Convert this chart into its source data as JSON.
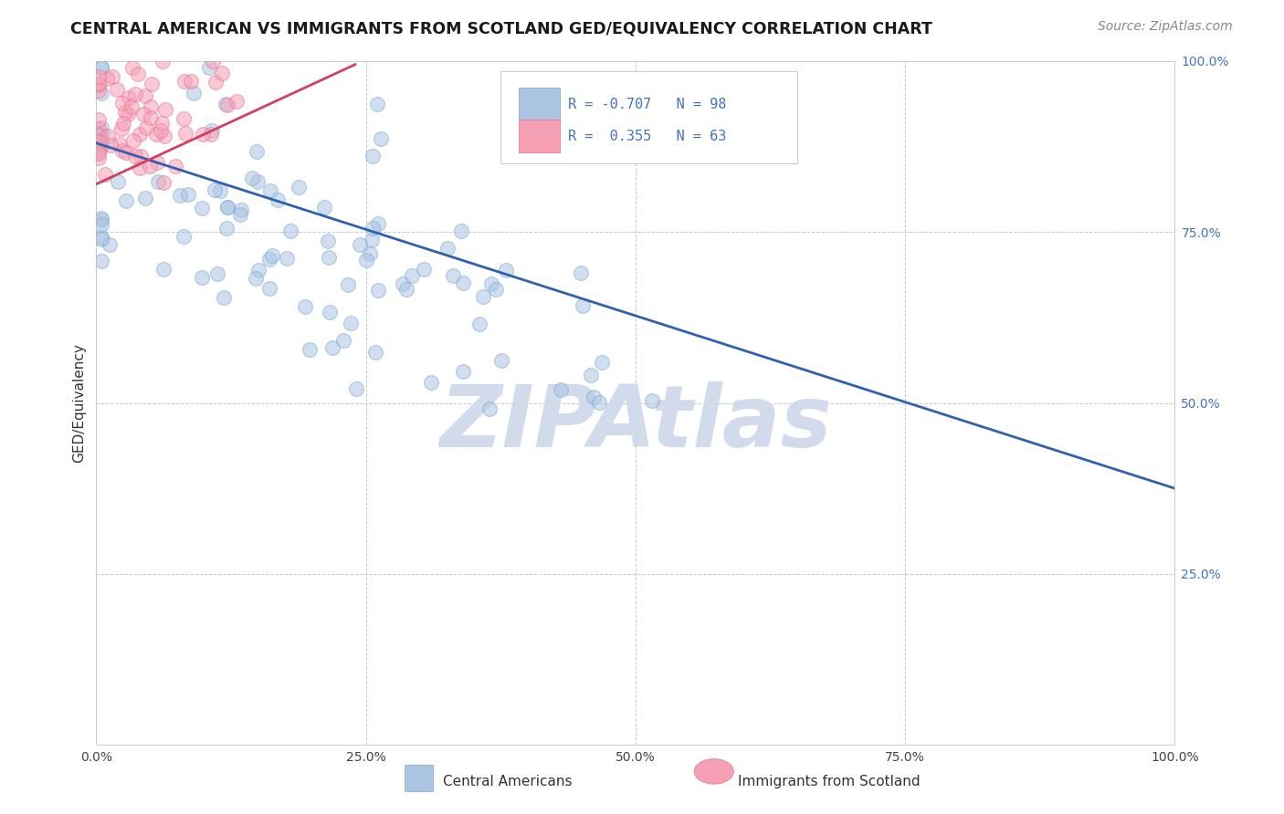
{
  "title": "CENTRAL AMERICAN VS IMMIGRANTS FROM SCOTLAND GED/EQUIVALENCY CORRELATION CHART",
  "source": "Source: ZipAtlas.com",
  "ylabel": "GED/Equivalency",
  "xlim": [
    0.0,
    1.0
  ],
  "ylim": [
    0.0,
    1.0
  ],
  "xticks": [
    0.0,
    0.25,
    0.5,
    0.75,
    1.0
  ],
  "yticks": [
    0.25,
    0.5,
    0.75,
    1.0
  ],
  "xtick_labels": [
    "0.0%",
    "25.0%",
    "50.0%",
    "75.0%",
    "100.0%"
  ],
  "ytick_labels": [
    "25.0%",
    "50.0%",
    "75.0%",
    "100.0%"
  ],
  "blue_R": -0.707,
  "blue_N": 98,
  "pink_R": 0.355,
  "pink_N": 63,
  "blue_color": "#aac4e2",
  "pink_color": "#f5a0b5",
  "blue_edge_color": "#7aaad0",
  "pink_edge_color": "#e87090",
  "blue_line_color": "#3060b0",
  "pink_line_color": "#d04060",
  "legend_label_blue": "Central Americans",
  "legend_label_pink": "Immigrants from Scotland",
  "blue_line_x0": 0.0,
  "blue_line_y0": 0.88,
  "blue_line_x1": 1.0,
  "blue_line_y1": 0.375,
  "pink_line_x0": 0.0,
  "pink_line_y0": 0.82,
  "pink_line_x1": 0.24,
  "pink_line_y1": 0.995,
  "background_color": "#ffffff",
  "grid_color": "#c8c8c8",
  "watermark": "ZIPAtlas",
  "watermark_color": "#cdd8ea",
  "title_fontsize": 12.5,
  "axis_label_fontsize": 11,
  "tick_fontsize": 10,
  "legend_fontsize": 11,
  "source_fontsize": 10,
  "dot_size": 130,
  "dot_alpha": 0.55,
  "blue_seed": 42,
  "pink_seed": 7
}
